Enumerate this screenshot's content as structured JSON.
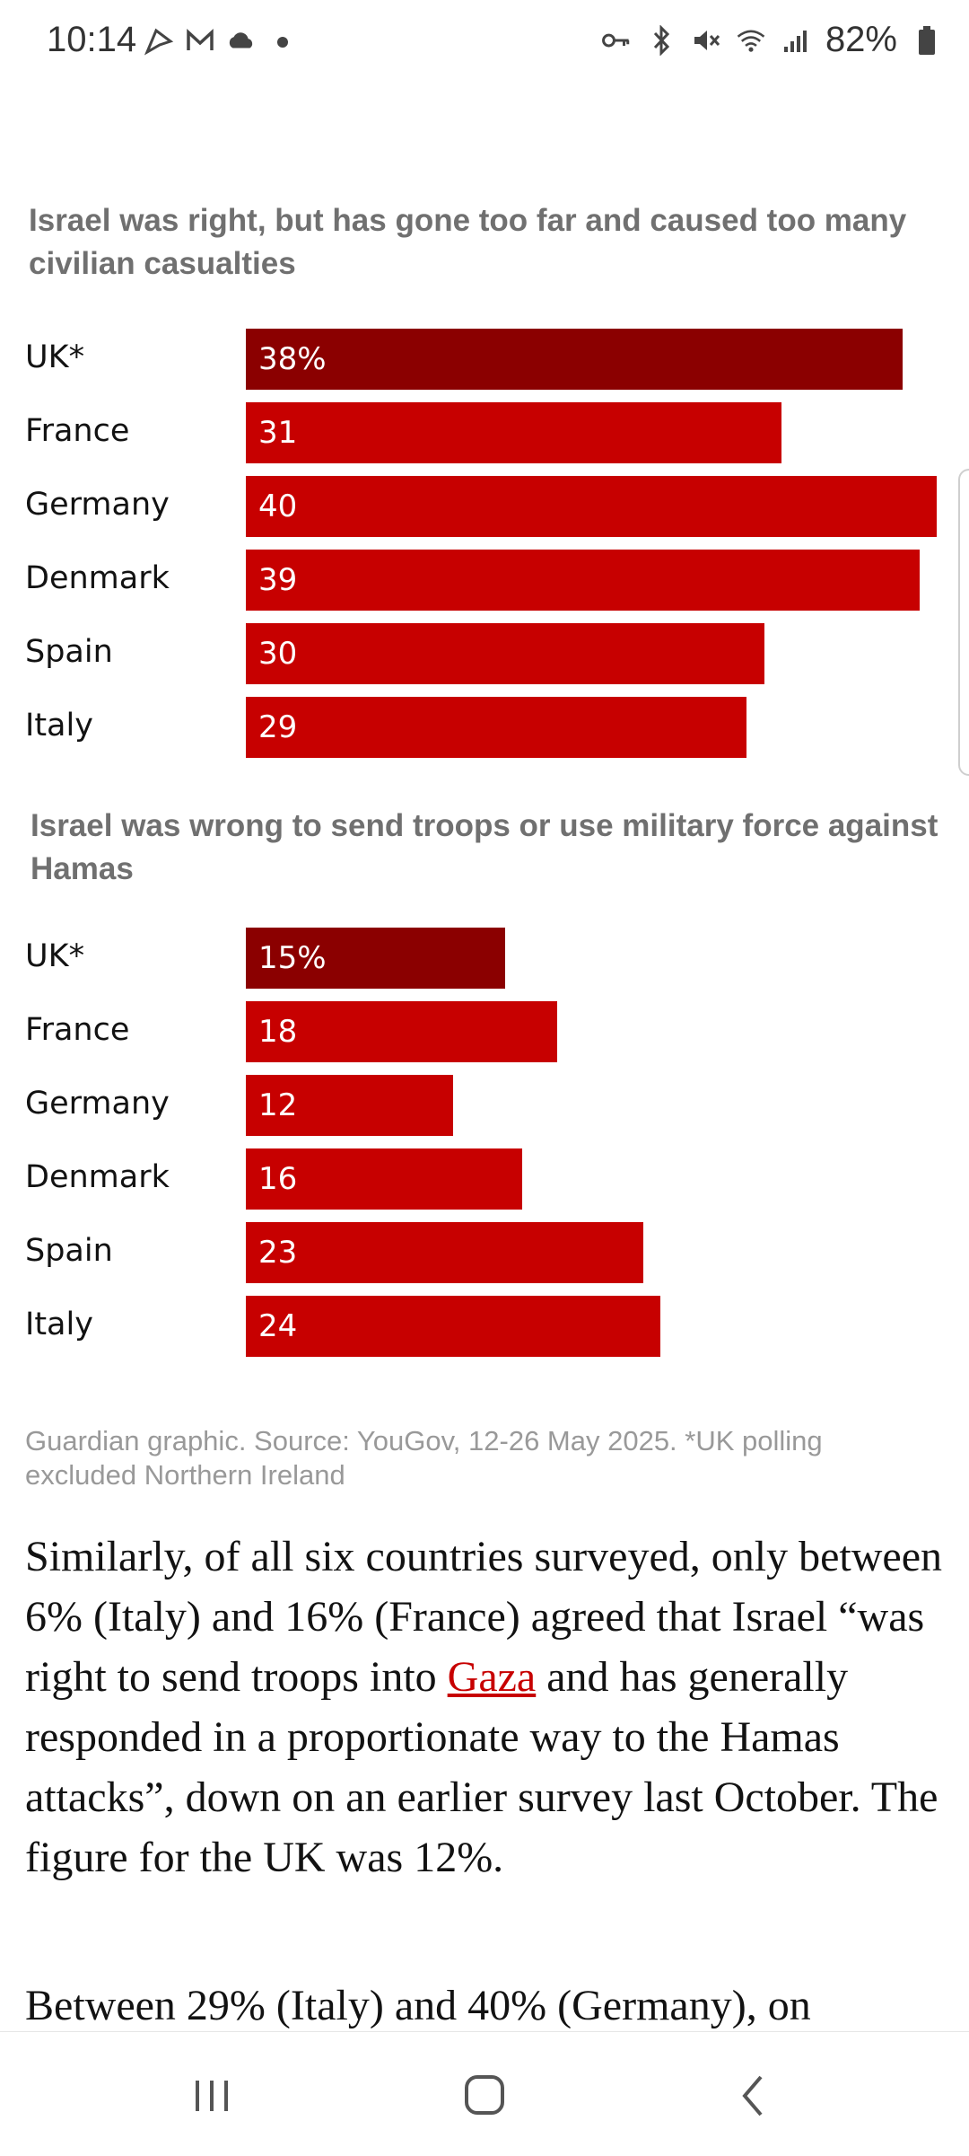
{
  "status_bar": {
    "time": "10:14",
    "battery": "82%",
    "left_icons": [
      "whatsapp-icon",
      "gmail-icon",
      "cloud-icon",
      "dot-icon"
    ],
    "right_icons": [
      "key-icon",
      "bluetooth-icon",
      "mute-icon",
      "wifi-icon",
      "signal-icon",
      "battery-icon"
    ]
  },
  "charts": {
    "c1_title": "Israel was right, but has gone too far and caused too many civilian casualties",
    "c2_title": "Israel was wrong to send troops or use military force against Hamas"
  },
  "chart_data": [
    {
      "type": "bar",
      "title": "Israel was right, but has gone too far and caused too many civilian casualties",
      "categories": [
        "UK*",
        "France",
        "Germany",
        "Denmark",
        "Spain",
        "Italy"
      ],
      "values": [
        38,
        31,
        40,
        39,
        30,
        29
      ],
      "value_labels": [
        "38%",
        "31",
        "40",
        "39",
        "30",
        "29"
      ],
      "highlight": "UK*",
      "colors": {
        "highlight": "#8b0000",
        "default": "#c70000"
      }
    },
    {
      "type": "bar",
      "title": "Israel was wrong to send troops or use military force against Hamas",
      "categories": [
        "UK*",
        "France",
        "Germany",
        "Denmark",
        "Spain",
        "Italy"
      ],
      "values": [
        15,
        18,
        12,
        16,
        23,
        24
      ],
      "value_labels": [
        "15%",
        "18",
        "12",
        "16",
        "23",
        "24"
      ],
      "highlight": "UK*",
      "colors": {
        "highlight": "#8b0000",
        "default": "#c70000"
      }
    }
  ],
  "source": "Guardian graphic. Source: YouGov, 12-26 May 2025. *UK polling excluded Northern Ireland",
  "article": {
    "para1_before": "Similarly, of all six countries surveyed, only between 6% (Italy) and 16% (France) agreed that Israel “was right to send troops into ",
    "para1_link": "Gaza",
    "para1_after": " and has generally responded in a proportionate way to the Hamas attacks”, down on an earlier survey last October. The figure for the UK was 12%.",
    "para2": "Between 29% (Italy) and 40% (Germany), on"
  },
  "nav_bar": {
    "buttons": [
      "recents-icon",
      "home-icon",
      "back-icon"
    ]
  }
}
